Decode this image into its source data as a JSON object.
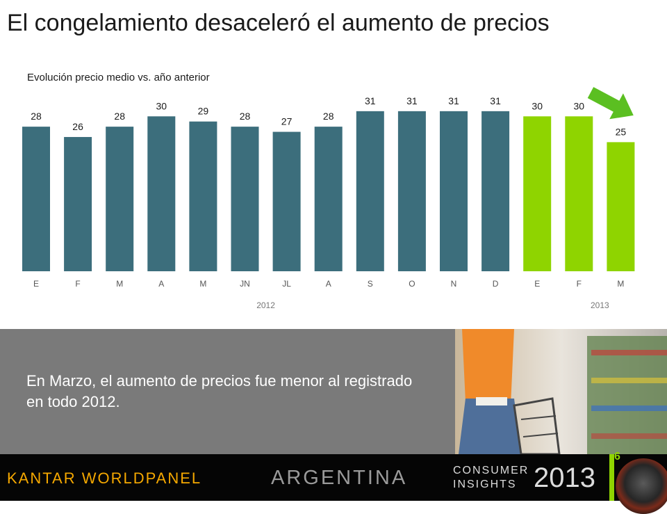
{
  "slide": {
    "title": "El congelamiento desaceleró el aumento de precios",
    "subtitle": "Evolución precio medio vs. año anterior",
    "message": "En Marzo, el aumento de precios fue menor al registrado en todo 2012."
  },
  "footer": {
    "brand": "KANTAR WORLDPANEL",
    "country": "ARGENTINA",
    "consumer_line1": "CONSUMER",
    "consumer_line2": "INSIGHTS",
    "year": "2013",
    "page_number": "6"
  },
  "colors": {
    "bar_2012": "#3c6e7c",
    "bar_2013": "#8fd400",
    "arrow": "#5bbf21"
  },
  "chart_data": {
    "type": "bar",
    "categories": [
      "E",
      "F",
      "M",
      "A",
      "M",
      "JN",
      "JL",
      "A",
      "S",
      "O",
      "N",
      "D",
      "E",
      "F",
      "M"
    ],
    "values": [
      28,
      26,
      28,
      30,
      29,
      28,
      27,
      28,
      31,
      31,
      31,
      31,
      30,
      30,
      25
    ],
    "groups": [
      {
        "label": "2012",
        "count": 12
      },
      {
        "label": "2013",
        "count": 3
      }
    ],
    "title": "",
    "xlabel": "",
    "ylabel": "",
    "ylim": [
      0,
      33
    ],
    "grid": false
  }
}
